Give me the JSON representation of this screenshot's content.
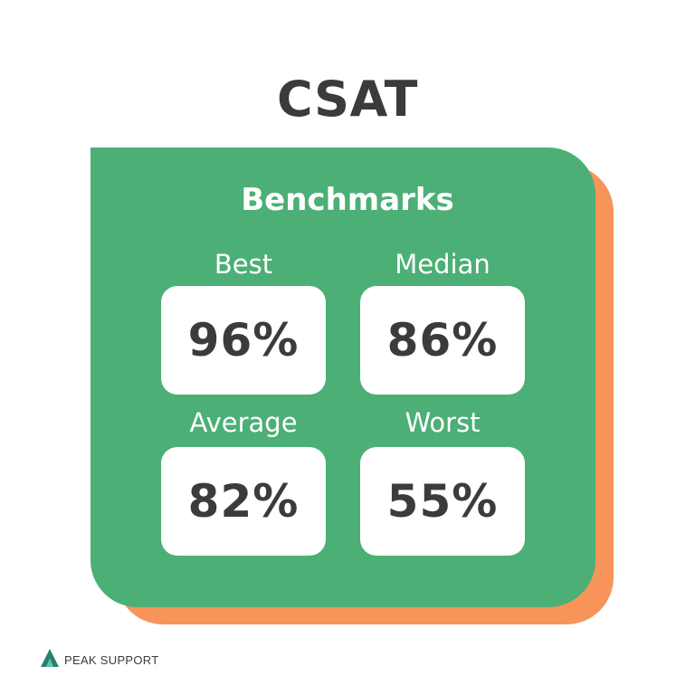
{
  "title": "CSAT",
  "card": {
    "heading": "Benchmarks",
    "metrics": [
      {
        "label": "Best",
        "value": "96%"
      },
      {
        "label": "Median",
        "value": "86%"
      },
      {
        "label": "Average",
        "value": "82%"
      },
      {
        "label": "Worst",
        "value": "55%"
      }
    ]
  },
  "logo": {
    "text": "PEAK SUPPORT",
    "icon": "peak-logo-icon"
  },
  "colors": {
    "card_green": "#4caf76",
    "card_shadow_orange": "#f7945a",
    "text_dark": "#3b3b3b",
    "logo_teal": "#2a7f6f"
  }
}
